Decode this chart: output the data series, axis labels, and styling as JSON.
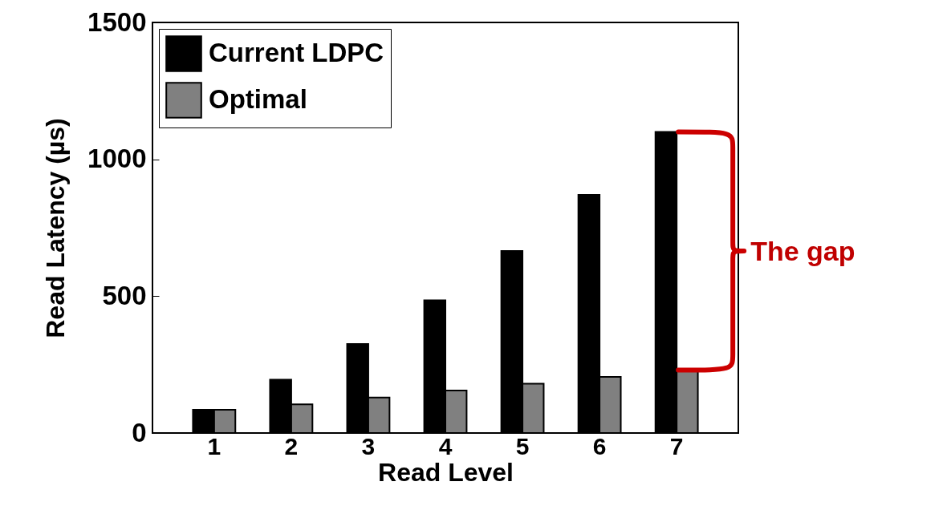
{
  "chart_data": {
    "type": "bar",
    "xlabel": "Read Level",
    "ylabel": "Read Latency (µs)",
    "categories": [
      "1",
      "2",
      "3",
      "4",
      "5",
      "6",
      "7"
    ],
    "series": [
      {
        "name": "Current LDPC",
        "color": "#000000",
        "values": [
          85,
          195,
          325,
          485,
          665,
          870,
          1100
        ]
      },
      {
        "name": "Optimal",
        "color": "#808080",
        "values": [
          85,
          105,
          130,
          155,
          180,
          205,
          230
        ]
      }
    ],
    "ylim": [
      0,
      1500
    ],
    "yticks": [
      0,
      500,
      1000,
      1500
    ],
    "legend": "top left",
    "annotations": [
      "The gap"
    ]
  }
}
